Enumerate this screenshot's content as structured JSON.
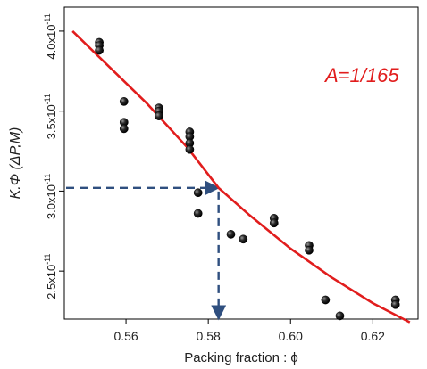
{
  "chart_data": {
    "type": "scatter",
    "xlabel": "Packing fraction : ϕ",
    "ylabel": "K.Φ (ΔP,M)",
    "annotation": "A=1/165",
    "xlim": [
      0.545,
      0.631
    ],
    "ylim": [
      2.2,
      4.15
    ],
    "x_ticks": [
      {
        "value": 0.56,
        "label": "0.56"
      },
      {
        "value": 0.58,
        "label": "0.58"
      },
      {
        "value": 0.6,
        "label": "0.60"
      },
      {
        "value": 0.62,
        "label": "0.62"
      }
    ],
    "y_ticks": [
      {
        "value": 2.5,
        "mantissa": "2.5x10",
        "exponent": "-11"
      },
      {
        "value": 3.0,
        "mantissa": "3.0x10",
        "exponent": "-11"
      },
      {
        "value": 3.5,
        "mantissa": "3.5x10",
        "exponent": "-11"
      },
      {
        "value": 4.0,
        "mantissa": "4.0x10",
        "exponent": "-11"
      }
    ],
    "y_unit_scale": "x10^-11",
    "grid": false,
    "colors": {
      "fit_line": "#e11d1d",
      "points": "#111111",
      "guide_lines": "#2f4f7f",
      "annotation": "#e11d1d"
    },
    "points": [
      {
        "x": 0.5535,
        "y": 3.93
      },
      {
        "x": 0.5535,
        "y": 3.91
      },
      {
        "x": 0.5535,
        "y": 3.88
      },
      {
        "x": 0.5595,
        "y": 3.56
      },
      {
        "x": 0.5595,
        "y": 3.43
      },
      {
        "x": 0.5595,
        "y": 3.39
      },
      {
        "x": 0.568,
        "y": 3.52
      },
      {
        "x": 0.568,
        "y": 3.5
      },
      {
        "x": 0.568,
        "y": 3.47
      },
      {
        "x": 0.5755,
        "y": 3.37
      },
      {
        "x": 0.5755,
        "y": 3.34
      },
      {
        "x": 0.5755,
        "y": 3.3
      },
      {
        "x": 0.5755,
        "y": 3.26
      },
      {
        "x": 0.5775,
        "y": 2.99
      },
      {
        "x": 0.5775,
        "y": 2.86
      },
      {
        "x": 0.5855,
        "y": 2.73
      },
      {
        "x": 0.5885,
        "y": 2.7
      },
      {
        "x": 0.596,
        "y": 2.83
      },
      {
        "x": 0.596,
        "y": 2.8
      },
      {
        "x": 0.6045,
        "y": 2.66
      },
      {
        "x": 0.6045,
        "y": 2.63
      },
      {
        "x": 0.6085,
        "y": 2.32
      },
      {
        "x": 0.612,
        "y": 2.22
      },
      {
        "x": 0.6255,
        "y": 2.32
      },
      {
        "x": 0.6255,
        "y": 2.29
      }
    ],
    "fit_curve": {
      "x": [
        0.547,
        0.555,
        0.565,
        0.575,
        0.5825,
        0.59,
        0.6,
        0.61,
        0.62,
        0.629
      ],
      "y": [
        4.0,
        3.8,
        3.55,
        3.27,
        3.02,
        2.85,
        2.64,
        2.46,
        2.3,
        2.18
      ]
    },
    "guide": {
      "x": 0.5825,
      "y": 3.02
    }
  }
}
